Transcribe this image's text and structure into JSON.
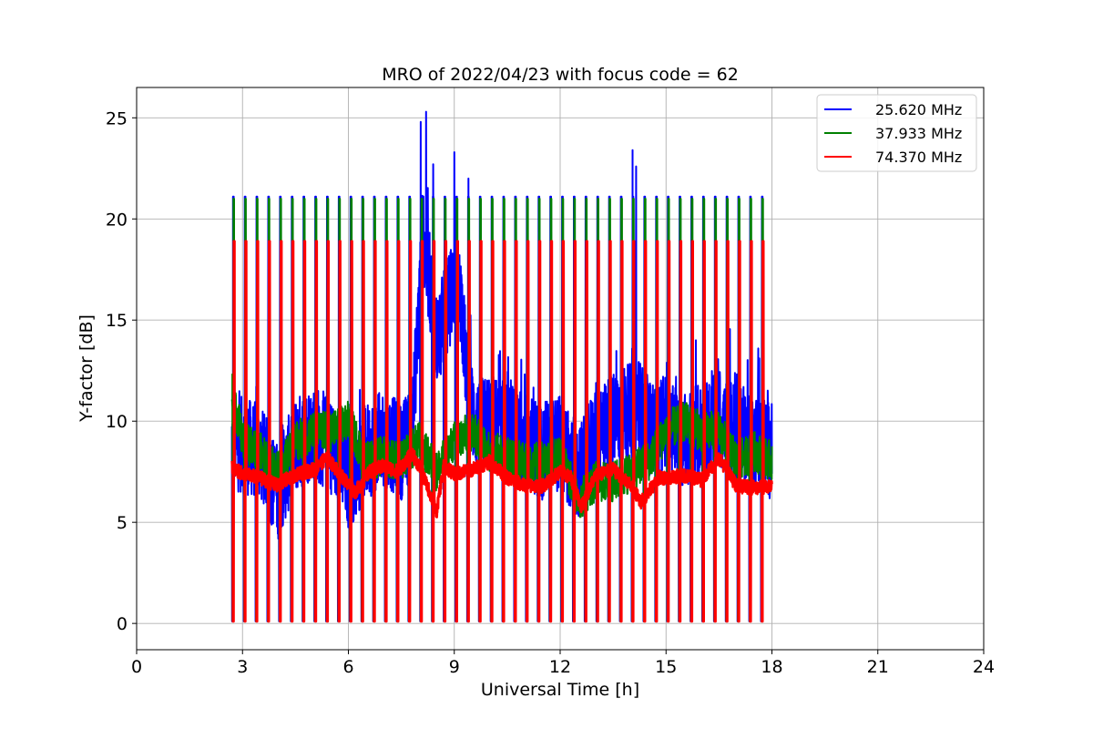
{
  "chart_data": {
    "type": "line",
    "title": "MRO of 2022/04/23 with focus code = 62",
    "xlabel": "Universal Time [h]",
    "ylabel": "Y-factor [dB]",
    "xlim": [
      0,
      24
    ],
    "ylim": [
      -1.3,
      26.5
    ],
    "xticks": [
      0,
      3,
      6,
      9,
      12,
      15,
      18,
      21,
      24
    ],
    "yticks": [
      0,
      5,
      10,
      15,
      20,
      25
    ],
    "grid": true,
    "legend_position": "top-right",
    "data_range_x": [
      2.7,
      18.0
    ],
    "calibration_period_h": 0.333,
    "calibration_peaks_db": {
      "blue": 21.1,
      "green": 21.0,
      "red": 18.9
    },
    "series": [
      {
        "name": "25.620 MHz",
        "color": "#0000ff",
        "baseline": [
          [
            2.7,
            9.0
          ],
          [
            3.5,
            8.5
          ],
          [
            4.0,
            6.5
          ],
          [
            4.5,
            8.8
          ],
          [
            5.0,
            9.5
          ],
          [
            5.5,
            8.8
          ],
          [
            6.0,
            7.0
          ],
          [
            6.5,
            8.5
          ],
          [
            7.0,
            9.2
          ],
          [
            7.5,
            8.5
          ],
          [
            7.8,
            9.5
          ],
          [
            7.95,
            14.0
          ],
          [
            8.1,
            19.0
          ],
          [
            8.3,
            17.0
          ],
          [
            8.5,
            14.0
          ],
          [
            8.8,
            15.5
          ],
          [
            9.0,
            17.0
          ],
          [
            9.2,
            16.0
          ],
          [
            9.4,
            11.0
          ],
          [
            9.7,
            9.5
          ],
          [
            10.0,
            10.0
          ],
          [
            10.5,
            9.5
          ],
          [
            11.0,
            9.0
          ],
          [
            11.5,
            8.5
          ],
          [
            12.0,
            9.0
          ],
          [
            12.5,
            7.0
          ],
          [
            13.0,
            9.5
          ],
          [
            13.5,
            10.0
          ],
          [
            14.0,
            10.5
          ],
          [
            14.2,
            11.0
          ],
          [
            14.5,
            9.5
          ],
          [
            15.0,
            10.0
          ],
          [
            15.5,
            9.0
          ],
          [
            16.0,
            9.5
          ],
          [
            16.5,
            10.0
          ],
          [
            17.0,
            9.5
          ],
          [
            17.5,
            9.0
          ],
          [
            18.0,
            8.5
          ]
        ],
        "noise": 2.4,
        "spikes": [
          [
            8.05,
            24.8
          ],
          [
            8.2,
            25.3
          ],
          [
            8.4,
            22.7
          ],
          [
            9.0,
            23.3
          ],
          [
            9.4,
            22.0
          ],
          [
            14.05,
            23.4
          ],
          [
            14.15,
            22.6
          ]
        ]
      },
      {
        "name": "37.933 MHz",
        "color": "#008000",
        "baseline": [
          [
            2.7,
            11.5
          ],
          [
            3.0,
            9.0
          ],
          [
            3.5,
            8.5
          ],
          [
            4.0,
            7.5
          ],
          [
            4.5,
            9.0
          ],
          [
            5.0,
            9.5
          ],
          [
            5.5,
            9.5
          ],
          [
            6.0,
            10.0
          ],
          [
            6.5,
            8.0
          ],
          [
            7.0,
            8.3
          ],
          [
            7.5,
            8.0
          ],
          [
            8.0,
            9.0
          ],
          [
            8.5,
            7.5
          ],
          [
            9.0,
            9.0
          ],
          [
            9.5,
            9.5
          ],
          [
            10.0,
            8.5
          ],
          [
            10.5,
            8.3
          ],
          [
            11.0,
            8.0
          ],
          [
            11.5,
            8.0
          ],
          [
            12.0,
            8.5
          ],
          [
            12.5,
            6.0
          ],
          [
            13.0,
            7.0
          ],
          [
            13.5,
            7.0
          ],
          [
            14.0,
            7.5
          ],
          [
            14.5,
            8.0
          ],
          [
            15.0,
            9.5
          ],
          [
            15.5,
            10.0
          ],
          [
            16.0,
            9.5
          ],
          [
            16.5,
            9.5
          ],
          [
            17.0,
            8.0
          ],
          [
            17.5,
            8.5
          ],
          [
            18.0,
            8.0
          ]
        ],
        "noise": 1.0
      },
      {
        "name": "74.370 MHz",
        "color": "#ff0000",
        "baseline": [
          [
            2.7,
            7.7
          ],
          [
            3.0,
            7.4
          ],
          [
            3.5,
            7.2
          ],
          [
            4.0,
            6.8
          ],
          [
            4.3,
            7.2
          ],
          [
            5.0,
            7.6
          ],
          [
            5.4,
            8.2
          ],
          [
            5.8,
            7.3
          ],
          [
            6.2,
            6.5
          ],
          [
            6.6,
            7.5
          ],
          [
            7.0,
            7.8
          ],
          [
            7.4,
            7.5
          ],
          [
            7.8,
            8.4
          ],
          [
            8.0,
            7.8
          ],
          [
            8.3,
            6.5
          ],
          [
            8.5,
            5.5
          ],
          [
            8.7,
            7.8
          ],
          [
            9.0,
            7.4
          ],
          [
            9.5,
            7.6
          ],
          [
            10.0,
            8.0
          ],
          [
            10.5,
            7.2
          ],
          [
            11.0,
            6.8
          ],
          [
            11.5,
            6.8
          ],
          [
            12.0,
            7.5
          ],
          [
            12.3,
            7.2
          ],
          [
            12.6,
            5.8
          ],
          [
            13.0,
            7.3
          ],
          [
            13.5,
            7.6
          ],
          [
            14.0,
            6.8
          ],
          [
            14.3,
            6.0
          ],
          [
            14.8,
            7.2
          ],
          [
            15.5,
            7.3
          ],
          [
            16.0,
            7.1
          ],
          [
            16.5,
            8.2
          ],
          [
            17.0,
            6.8
          ],
          [
            17.5,
            6.7
          ],
          [
            18.0,
            6.8
          ]
        ],
        "noise": 0.35
      }
    ]
  }
}
